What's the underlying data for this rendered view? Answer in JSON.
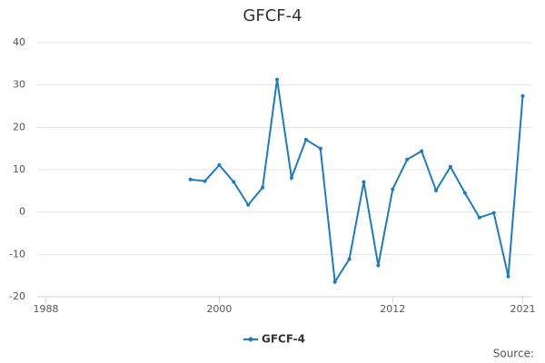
{
  "chart_data": {
    "type": "line",
    "title": "GFCF-4",
    "source": "Source:",
    "x": [
      1998,
      1999,
      2000,
      2001,
      2002,
      2003,
      2004,
      2005,
      2006,
      2007,
      2008,
      2009,
      2010,
      2011,
      2012,
      2013,
      2014,
      2015,
      2016,
      2017,
      2018,
      2019,
      2020,
      2021
    ],
    "series": [
      {
        "name": "GFCF-4",
        "color": "#1f7bbf",
        "values": [
          7.7,
          7.3,
          11.1,
          7.1,
          1.7,
          5.8,
          31.3,
          8.1,
          17.1,
          15.0,
          -16.5,
          -11.1,
          7.1,
          -12.6,
          5.4,
          12.4,
          14.4,
          5.1,
          10.7,
          4.5,
          -1.3,
          -0.2,
          -15.2,
          27.4
        ]
      }
    ],
    "xlim": [
      1987.4,
      2021.6
    ],
    "xticks": [
      1988,
      2000,
      2012,
      2021
    ],
    "ylim": [
      -20,
      40
    ],
    "yticks": [
      -20,
      -10,
      0,
      10,
      20,
      30,
      40
    ],
    "grid": true,
    "legend": "bottom"
  }
}
